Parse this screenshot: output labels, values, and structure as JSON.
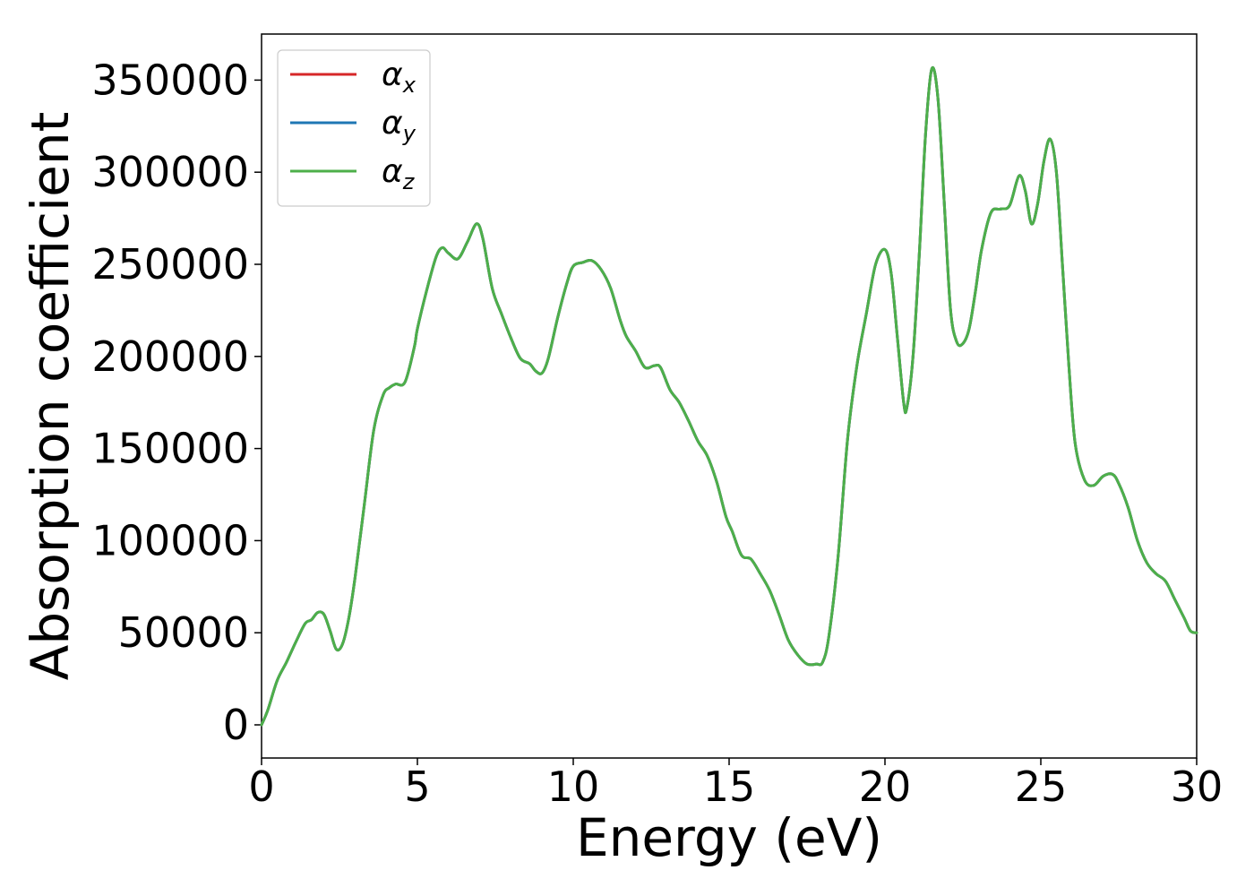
{
  "chart_data": {
    "type": "line",
    "title": "",
    "xlabel": "Energy (eV)",
    "ylabel": "Absorption coefficient",
    "xlim": [
      0,
      30
    ],
    "ylim": [
      -18000,
      375000
    ],
    "x_ticks": [
      0,
      5,
      10,
      15,
      20,
      25,
      30
    ],
    "y_ticks": [
      0,
      50000,
      100000,
      150000,
      200000,
      250000,
      300000,
      350000
    ],
    "grid": false,
    "legend_position": "upper-left",
    "x": [
      0,
      0.2,
      0.5,
      0.8,
      1.1,
      1.4,
      1.6,
      1.8,
      2.0,
      2.2,
      2.4,
      2.6,
      2.8,
      3.0,
      3.3,
      3.6,
      3.9,
      4.1,
      4.3,
      4.6,
      4.9,
      5.0,
      5.3,
      5.6,
      5.8,
      6.0,
      6.3,
      6.6,
      6.9,
      7.1,
      7.4,
      7.7,
      8.0,
      8.3,
      8.6,
      8.8,
      9.0,
      9.2,
      9.5,
      9.8,
      10.0,
      10.3,
      10.6,
      10.9,
      11.2,
      11.5,
      11.7,
      12.0,
      12.3,
      12.6,
      12.8,
      13.1,
      13.4,
      13.7,
      14.0,
      14.3,
      14.6,
      14.9,
      15.1,
      15.4,
      15.7,
      16.0,
      16.3,
      16.6,
      16.9,
      17.2,
      17.5,
      17.8,
      18.0,
      18.2,
      18.5,
      18.8,
      19.1,
      19.4,
      19.7,
      20.0,
      20.2,
      20.4,
      20.6,
      20.7,
      20.9,
      21.1,
      21.3,
      21.5,
      21.7,
      21.9,
      22.1,
      22.3,
      22.5,
      22.7,
      22.9,
      23.1,
      23.4,
      23.7,
      24.0,
      24.3,
      24.5,
      24.7,
      24.9,
      25.1,
      25.3,
      25.5,
      25.7,
      25.9,
      26.1,
      26.4,
      26.7,
      27.0,
      27.3,
      27.5,
      27.8,
      28.1,
      28.4,
      28.7,
      29.0,
      29.3,
      29.6,
      29.8,
      30.0
    ],
    "series": [
      {
        "name": "α_x",
        "color": "#d62728",
        "values": [
          0,
          8000,
          24000,
          34000,
          45000,
          55000,
          57000,
          61000,
          60000,
          51000,
          41000,
          44000,
          58000,
          80000,
          120000,
          160000,
          179000,
          183000,
          185000,
          186000,
          205000,
          215000,
          236000,
          254000,
          259000,
          256000,
          253000,
          262000,
          272000,
          264000,
          237000,
          223000,
          210000,
          199000,
          196000,
          192000,
          191000,
          199000,
          221000,
          240000,
          249000,
          251000,
          252000,
          247000,
          237000,
          220000,
          211000,
          203000,
          194000,
          195000,
          194000,
          182000,
          175000,
          165000,
          154000,
          146000,
          132000,
          113000,
          105000,
          92000,
          90000,
          82000,
          73000,
          60000,
          46000,
          38000,
          33000,
          33000,
          34000,
          48000,
          92000,
          155000,
          195000,
          223000,
          250000,
          258000,
          245000,
          210000,
          175000,
          172000,
          200000,
          255000,
          320000,
          356000,
          340000,
          284000,
          226000,
          208000,
          207000,
          215000,
          235000,
          258000,
          278000,
          280000,
          282000,
          298000,
          290000,
          272000,
          283000,
          306000,
          318000,
          300000,
          248000,
          195000,
          153000,
          133000,
          130000,
          135000,
          136000,
          131000,
          118000,
          100000,
          88000,
          82000,
          78000,
          68000,
          58000,
          51000,
          50000
        ]
      },
      {
        "name": "α_y",
        "color": "#1f77b4",
        "values": [
          0,
          8000,
          24000,
          34000,
          45000,
          55000,
          57000,
          61000,
          60000,
          51000,
          41000,
          44000,
          58000,
          80000,
          120000,
          160000,
          179000,
          183000,
          185000,
          186000,
          205000,
          215000,
          236000,
          254000,
          259000,
          256000,
          253000,
          262000,
          272000,
          264000,
          237000,
          223000,
          210000,
          199000,
          196000,
          192000,
          191000,
          199000,
          221000,
          240000,
          249000,
          251000,
          252000,
          247000,
          237000,
          220000,
          211000,
          203000,
          194000,
          195000,
          194000,
          182000,
          175000,
          165000,
          154000,
          146000,
          132000,
          113000,
          105000,
          92000,
          90000,
          82000,
          73000,
          60000,
          46000,
          38000,
          33000,
          33000,
          34000,
          48000,
          92000,
          155000,
          195000,
          223000,
          250000,
          258000,
          245000,
          210000,
          175000,
          172000,
          200000,
          255000,
          320000,
          356000,
          340000,
          284000,
          226000,
          208000,
          207000,
          215000,
          235000,
          258000,
          278000,
          280000,
          282000,
          298000,
          290000,
          272000,
          283000,
          306000,
          318000,
          300000,
          248000,
          195000,
          153000,
          133000,
          130000,
          135000,
          136000,
          131000,
          118000,
          100000,
          88000,
          82000,
          78000,
          68000,
          58000,
          51000,
          50000
        ]
      },
      {
        "name": "α_z",
        "color": "#4daf4a",
        "values": [
          0,
          8000,
          24000,
          34000,
          45000,
          55000,
          57000,
          61000,
          60000,
          51000,
          41000,
          44000,
          58000,
          80000,
          120000,
          160000,
          179000,
          183000,
          185000,
          186000,
          205000,
          215000,
          236000,
          254000,
          259000,
          256000,
          253000,
          262000,
          272000,
          264000,
          237000,
          223000,
          210000,
          199000,
          196000,
          192000,
          191000,
          199000,
          221000,
          240000,
          249000,
          251000,
          252000,
          247000,
          237000,
          220000,
          211000,
          203000,
          194000,
          195000,
          194000,
          182000,
          175000,
          165000,
          154000,
          146000,
          132000,
          113000,
          105000,
          92000,
          90000,
          82000,
          73000,
          60000,
          46000,
          38000,
          33000,
          33000,
          34000,
          48000,
          92000,
          155000,
          195000,
          223000,
          250000,
          258000,
          245000,
          210000,
          175000,
          172000,
          200000,
          255000,
          320000,
          356000,
          340000,
          284000,
          226000,
          208000,
          207000,
          215000,
          235000,
          258000,
          278000,
          280000,
          282000,
          298000,
          290000,
          272000,
          283000,
          306000,
          318000,
          300000,
          248000,
          195000,
          153000,
          133000,
          130000,
          135000,
          136000,
          131000,
          118000,
          100000,
          88000,
          82000,
          78000,
          68000,
          58000,
          51000,
          50000
        ]
      }
    ],
    "legend": [
      {
        "symbol": "α",
        "subscript": "x",
        "color": "#d62728"
      },
      {
        "symbol": "α",
        "subscript": "y",
        "color": "#1f77b4"
      },
      {
        "symbol": "α",
        "subscript": "z",
        "color": "#4daf4a"
      }
    ]
  }
}
